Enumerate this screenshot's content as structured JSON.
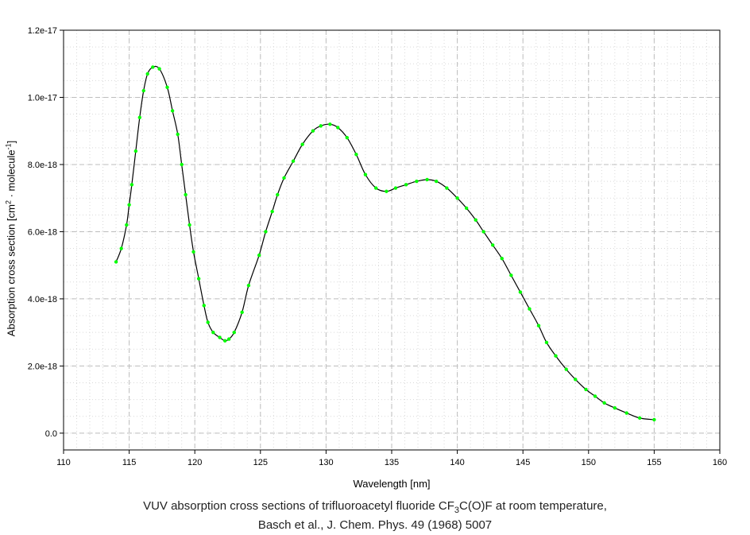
{
  "chart_data": {
    "type": "line",
    "xlabel": "Wavelength [nm]",
    "ylabel_prefix": "Absorption cross section [cm",
    "ylabel_sup1": "2",
    "ylabel_mid": " · molecule",
    "ylabel_sup2": "-1",
    "ylabel_suffix": "]",
    "xlim": [
      110,
      160
    ],
    "ylim": [
      -5e-19,
      1.2e-17
    ],
    "x_ticks": [
      110,
      115,
      120,
      125,
      130,
      135,
      140,
      145,
      150,
      155,
      160
    ],
    "x_tick_labels": [
      "110",
      "115",
      "120",
      "125",
      "130",
      "135",
      "140",
      "145",
      "150",
      "155",
      "160"
    ],
    "y_ticks": [
      0,
      2e-18,
      4e-18,
      6e-18,
      8e-18,
      1e-17,
      1.2e-17
    ],
    "y_tick_labels": [
      "0.0",
      "2.0e-18",
      "4.0e-18",
      "6.0e-18",
      "8.0e-18",
      "1.0e-17",
      "1.2e-17"
    ],
    "grid": true,
    "line_color": "#000000",
    "marker_color": "#00ff00",
    "series": [
      {
        "x": [
          114.0,
          114.4,
          114.8,
          115.0,
          115.2,
          115.5,
          115.8,
          116.1,
          116.4,
          116.8,
          117.3,
          117.9,
          118.3,
          118.7,
          119.0,
          119.3,
          119.6,
          119.9,
          120.3,
          120.7,
          121.0,
          121.4,
          121.9,
          122.3,
          122.6,
          123.0,
          123.6,
          124.1,
          124.9,
          125.4,
          125.9,
          126.3,
          126.8,
          127.5,
          128.2,
          129.0,
          129.6,
          130.3,
          130.9,
          131.6,
          132.3,
          133.0,
          133.8,
          134.6,
          135.3,
          136.1,
          136.9,
          137.7,
          138.4,
          139.2,
          140.0,
          140.7,
          141.4,
          142.0,
          142.7,
          143.4,
          144.1,
          144.8,
          145.5,
          146.2,
          146.8,
          147.5,
          148.3,
          149.0,
          149.8,
          150.5,
          151.2,
          152.0,
          152.9,
          153.9,
          155.0
        ],
        "y": [
          5.1e-18,
          5.5e-18,
          6.2e-18,
          6.8e-18,
          7.4e-18,
          8.4e-18,
          9.4e-18,
          1.02e-17,
          1.07e-17,
          1.09e-17,
          1.085e-17,
          1.03e-17,
          9.6e-18,
          8.9e-18,
          8e-18,
          7.1e-18,
          6.2e-18,
          5.4e-18,
          4.6e-18,
          3.8e-18,
          3.3e-18,
          3e-18,
          2.85e-18,
          2.75e-18,
          2.8e-18,
          3e-18,
          3.6e-18,
          4.4e-18,
          5.3e-18,
          6e-18,
          6.6e-18,
          7.1e-18,
          7.6e-18,
          8.1e-18,
          8.6e-18,
          9e-18,
          9.15e-18,
          9.2e-18,
          9.1e-18,
          8.8e-18,
          8.3e-18,
          7.7e-18,
          7.3e-18,
          7.2e-18,
          7.3e-18,
          7.4e-18,
          7.5e-18,
          7.55e-18,
          7.5e-18,
          7.3e-18,
          7e-18,
          6.7e-18,
          6.35e-18,
          6e-18,
          5.6e-18,
          5.2e-18,
          4.7e-18,
          4.2e-18,
          3.7e-18,
          3.2e-18,
          2.7e-18,
          2.3e-18,
          1.9e-18,
          1.6e-18,
          1.3e-18,
          1.1e-18,
          9e-19,
          7.5e-19,
          6e-19,
          4.5e-19,
          4e-19
        ]
      }
    ]
  },
  "caption": {
    "line1_prefix": "VUV absorption cross sections of trifluoroacetyl fluoride CF",
    "line1_sub": "3",
    "line1_suffix": "C(O)F at room temperature,",
    "line2": "Basch et al., J. Chem. Phys. 49 (1968) 5007"
  }
}
